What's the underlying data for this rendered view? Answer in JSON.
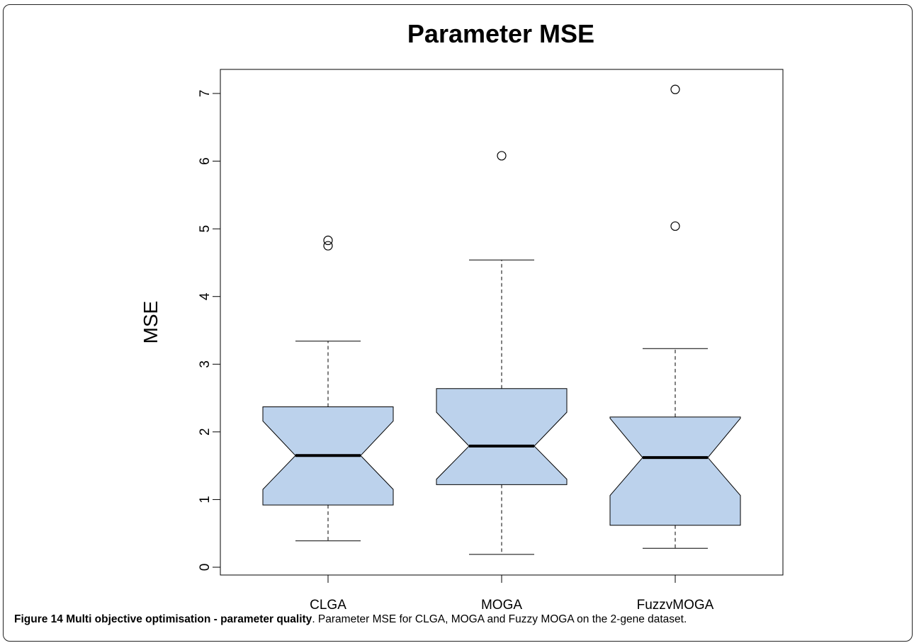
{
  "chart_data": {
    "type": "box",
    "title": "Parameter MSE",
    "xlabel": "",
    "ylabel": "MSE",
    "ylim": [
      0,
      7.3
    ],
    "yticks": [
      0,
      1,
      2,
      3,
      4,
      5,
      6,
      7
    ],
    "notched": true,
    "box_color": "#bcd2ec",
    "categories": [
      "CLGA",
      "MOGA",
      "FuzzyMOGA"
    ],
    "boxes": [
      {
        "name": "CLGA",
        "whisker_low": 0.39,
        "q1": 0.92,
        "notch_low": 1.15,
        "median": 1.65,
        "notch_high": 2.16,
        "q3": 2.37,
        "whisker_high": 3.34,
        "outliers": [
          4.75,
          4.83
        ]
      },
      {
        "name": "MOGA",
        "whisker_low": 0.19,
        "q1": 1.22,
        "notch_low": 1.3,
        "median": 1.79,
        "notch_high": 2.29,
        "q3": 2.64,
        "whisker_high": 4.54,
        "outliers": [
          6.08
        ]
      },
      {
        "name": "FuzzyMOGA",
        "whisker_low": 0.28,
        "q1": 0.62,
        "notch_low": 1.06,
        "median": 1.62,
        "notch_high": 2.2,
        "q3": 2.22,
        "whisker_high": 3.23,
        "outliers": [
          5.04,
          7.06
        ]
      }
    ]
  },
  "caption": {
    "title": "Figure 14 Multi objective optimisation - parameter quality",
    "text": ". Parameter MSE for CLGA, MOGA and Fuzzy MOGA on the 2-gene dataset."
  }
}
